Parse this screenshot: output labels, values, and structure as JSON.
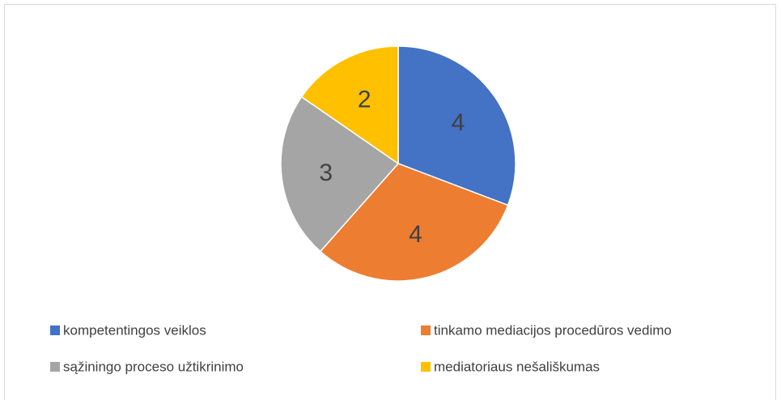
{
  "chart_data": {
    "type": "pie",
    "series": [
      {
        "name": "kompetentingos veiklos",
        "color": "#4472c4",
        "values": [
          4
        ]
      },
      {
        "name": "tinkamo mediacijos procedūros vedimo",
        "color": "#ed7d31",
        "values": [
          4
        ]
      },
      {
        "name": "sąžiningo proceso užtikrinimo",
        "color": "#a5a5a5",
        "values": [
          3
        ]
      },
      {
        "name": "mediatoriaus nešališkumas",
        "color": "#ffc000",
        "values": [
          2
        ]
      }
    ],
    "legend": "bottom"
  }
}
